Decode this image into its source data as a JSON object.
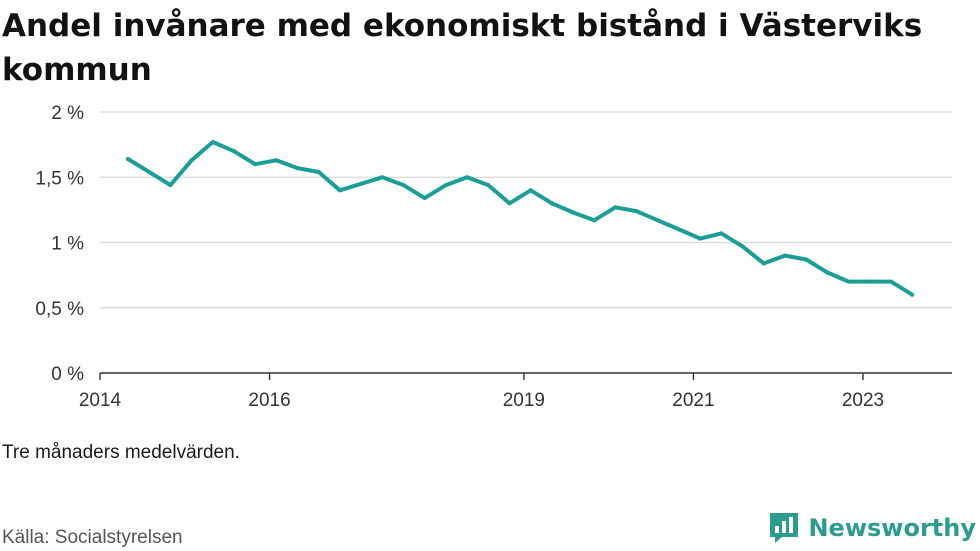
{
  "title": "Andel invånare med ekonomiskt bistånd i Västerviks kommun",
  "note": "Tre månaders medelvärden.",
  "source": "Källa: Socialstyrelsen",
  "brand": {
    "name": "Newsworthy",
    "icon": "newsworthy-logo-icon"
  },
  "colors": {
    "line": "#1a9e96",
    "grid": "#d9d9d9",
    "axis": "#333333",
    "brand": "#2a9d8f"
  },
  "chart_data": {
    "type": "line",
    "title": "Andel invånare med ekonomiskt bistånd i Västerviks kommun",
    "xlabel": "",
    "ylabel": "",
    "ylim": [
      0,
      2
    ],
    "xlim": [
      2014,
      2024.05
    ],
    "yticks": [
      {
        "value": 0,
        "label": "0 %"
      },
      {
        "value": 0.5,
        "label": "0,5 %"
      },
      {
        "value": 1,
        "label": "1 %"
      },
      {
        "value": 1.5,
        "label": "1,5 %"
      },
      {
        "value": 2,
        "label": "2 %"
      }
    ],
    "xticks": [
      {
        "value": 2014,
        "label": "2014"
      },
      {
        "value": 2016,
        "label": "2016"
      },
      {
        "value": 2019,
        "label": "2019"
      },
      {
        "value": 2021,
        "label": "2021"
      },
      {
        "value": 2023,
        "label": "2023"
      }
    ],
    "grid": true,
    "series": [
      {
        "name": "",
        "x": [
          2014.33,
          2014.58,
          2014.83,
          2015.08,
          2015.33,
          2015.58,
          2015.83,
          2016.08,
          2016.33,
          2016.58,
          2016.83,
          2017.08,
          2017.33,
          2017.58,
          2017.83,
          2018.08,
          2018.33,
          2018.58,
          2018.83,
          2019.08,
          2019.33,
          2019.58,
          2019.83,
          2020.08,
          2020.33,
          2020.58,
          2020.83,
          2021.08,
          2021.33,
          2021.58,
          2021.83,
          2022.08,
          2022.33,
          2022.58,
          2022.83,
          2023.08,
          2023.33,
          2023.58
        ],
        "values": [
          1.64,
          1.54,
          1.44,
          1.63,
          1.77,
          1.7,
          1.6,
          1.63,
          1.57,
          1.54,
          1.4,
          1.45,
          1.5,
          1.44,
          1.34,
          1.44,
          1.5,
          1.44,
          1.3,
          1.4,
          1.3,
          1.23,
          1.17,
          1.27,
          1.24,
          1.17,
          1.1,
          1.03,
          1.07,
          0.97,
          0.84,
          0.9,
          0.87,
          0.77,
          0.7,
          0.7,
          0.7,
          0.6
        ]
      }
    ]
  }
}
